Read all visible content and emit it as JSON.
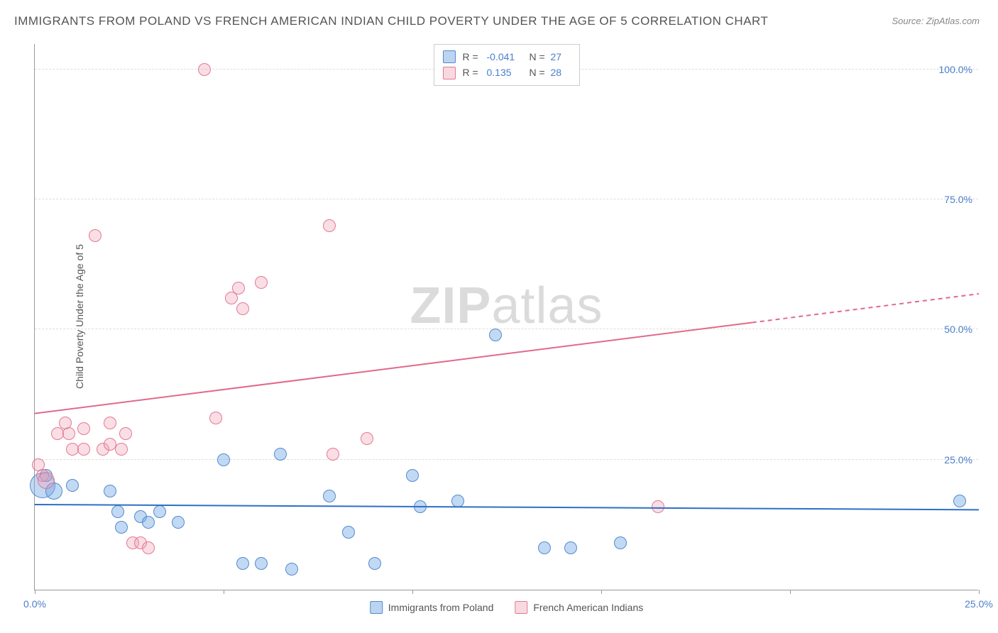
{
  "title": "IMMIGRANTS FROM POLAND VS FRENCH AMERICAN INDIAN CHILD POVERTY UNDER THE AGE OF 5 CORRELATION CHART",
  "source": "Source: ZipAtlas.com",
  "ylabel": "Child Poverty Under the Age of 5",
  "watermark_part1": "ZIP",
  "watermark_part2": "atlas",
  "chart": {
    "type": "scatter",
    "xlim": [
      0,
      25
    ],
    "ylim": [
      0,
      105
    ],
    "xticks": [
      0,
      5,
      10,
      15,
      20,
      25
    ],
    "xtick_labels": [
      "0.0%",
      "",
      "",
      "",
      "",
      "25.0%"
    ],
    "yticks": [
      25,
      50,
      75,
      100
    ],
    "ytick_labels": [
      "25.0%",
      "50.0%",
      "75.0%",
      "100.0%"
    ],
    "grid_color": "#dddddd",
    "background_color": "#ffffff",
    "axis_color": "#999999",
    "marker_radius": 9,
    "series": [
      {
        "name": "Immigrants from Poland",
        "color_fill": "rgba(120,170,230,0.45)",
        "color_stroke": "rgba(70,130,200,0.9)",
        "css_class": "blue",
        "R": "-0.041",
        "N": "27",
        "trend": {
          "y_at_x0": 16.5,
          "y_at_x25": 15.5,
          "stroke": "#2d6fc9",
          "width": 2,
          "dash_from_x": null
        },
        "points": [
          {
            "x": 0.2,
            "y": 20,
            "r": 18
          },
          {
            "x": 0.3,
            "y": 22,
            "r": 9
          },
          {
            "x": 0.5,
            "y": 19,
            "r": 12
          },
          {
            "x": 1.0,
            "y": 20,
            "r": 9
          },
          {
            "x": 2.0,
            "y": 19,
            "r": 9
          },
          {
            "x": 2.2,
            "y": 15,
            "r": 9
          },
          {
            "x": 2.3,
            "y": 12,
            "r": 9
          },
          {
            "x": 2.8,
            "y": 14,
            "r": 9
          },
          {
            "x": 3.0,
            "y": 13,
            "r": 9
          },
          {
            "x": 3.3,
            "y": 15,
            "r": 9
          },
          {
            "x": 3.8,
            "y": 13,
            "r": 9
          },
          {
            "x": 5.0,
            "y": 25,
            "r": 9
          },
          {
            "x": 5.5,
            "y": 5,
            "r": 9
          },
          {
            "x": 6.0,
            "y": 5,
            "r": 9
          },
          {
            "x": 6.5,
            "y": 26,
            "r": 9
          },
          {
            "x": 6.8,
            "y": 4,
            "r": 9
          },
          {
            "x": 7.8,
            "y": 18,
            "r": 9
          },
          {
            "x": 8.3,
            "y": 11,
            "r": 9
          },
          {
            "x": 9.0,
            "y": 5,
            "r": 9
          },
          {
            "x": 10.0,
            "y": 22,
            "r": 9
          },
          {
            "x": 10.2,
            "y": 16,
            "r": 9
          },
          {
            "x": 11.2,
            "y": 17,
            "r": 9
          },
          {
            "x": 12.2,
            "y": 49,
            "r": 9
          },
          {
            "x": 13.5,
            "y": 8,
            "r": 9
          },
          {
            "x": 14.2,
            "y": 8,
            "r": 9
          },
          {
            "x": 15.5,
            "y": 9,
            "r": 9
          },
          {
            "x": 24.5,
            "y": 17,
            "r": 9
          }
        ]
      },
      {
        "name": "French American Indians",
        "color_fill": "rgba(240,160,180,0.35)",
        "color_stroke": "rgba(225,110,140,0.9)",
        "css_class": "pink",
        "R": "0.135",
        "N": "28",
        "trend": {
          "y_at_x0": 34,
          "y_at_x25": 57,
          "stroke": "#e06a8a",
          "width": 2,
          "dash_from_x": 19
        },
        "points": [
          {
            "x": 0.1,
            "y": 24,
            "r": 9
          },
          {
            "x": 0.2,
            "y": 22,
            "r": 9
          },
          {
            "x": 0.3,
            "y": 21,
            "r": 12
          },
          {
            "x": 0.6,
            "y": 30,
            "r": 9
          },
          {
            "x": 0.8,
            "y": 32,
            "r": 9
          },
          {
            "x": 0.9,
            "y": 30,
            "r": 9
          },
          {
            "x": 1.0,
            "y": 27,
            "r": 9
          },
          {
            "x": 1.3,
            "y": 31,
            "r": 9
          },
          {
            "x": 1.3,
            "y": 27,
            "r": 9
          },
          {
            "x": 1.6,
            "y": 68,
            "r": 9
          },
          {
            "x": 1.8,
            "y": 27,
            "r": 9
          },
          {
            "x": 2.0,
            "y": 32,
            "r": 9
          },
          {
            "x": 2.0,
            "y": 28,
            "r": 9
          },
          {
            "x": 2.3,
            "y": 27,
            "r": 9
          },
          {
            "x": 2.4,
            "y": 30,
            "r": 9
          },
          {
            "x": 2.6,
            "y": 9,
            "r": 9
          },
          {
            "x": 2.8,
            "y": 9,
            "r": 9
          },
          {
            "x": 3.0,
            "y": 8,
            "r": 9
          },
          {
            "x": 4.5,
            "y": 100,
            "r": 9
          },
          {
            "x": 4.8,
            "y": 33,
            "r": 9
          },
          {
            "x": 5.2,
            "y": 56,
            "r": 9
          },
          {
            "x": 5.4,
            "y": 58,
            "r": 9
          },
          {
            "x": 5.5,
            "y": 54,
            "r": 9
          },
          {
            "x": 6.0,
            "y": 59,
            "r": 9
          },
          {
            "x": 7.8,
            "y": 70,
            "r": 9
          },
          {
            "x": 7.9,
            "y": 26,
            "r": 9
          },
          {
            "x": 8.8,
            "y": 29,
            "r": 9
          },
          {
            "x": 16.5,
            "y": 16,
            "r": 9
          }
        ]
      }
    ]
  },
  "legend_top": {
    "r_label": "R =",
    "n_label": "N ="
  },
  "legend_bottom": [
    {
      "swatch": "blue",
      "label": "Immigrants from Poland"
    },
    {
      "swatch": "pink",
      "label": "French American Indians"
    }
  ]
}
